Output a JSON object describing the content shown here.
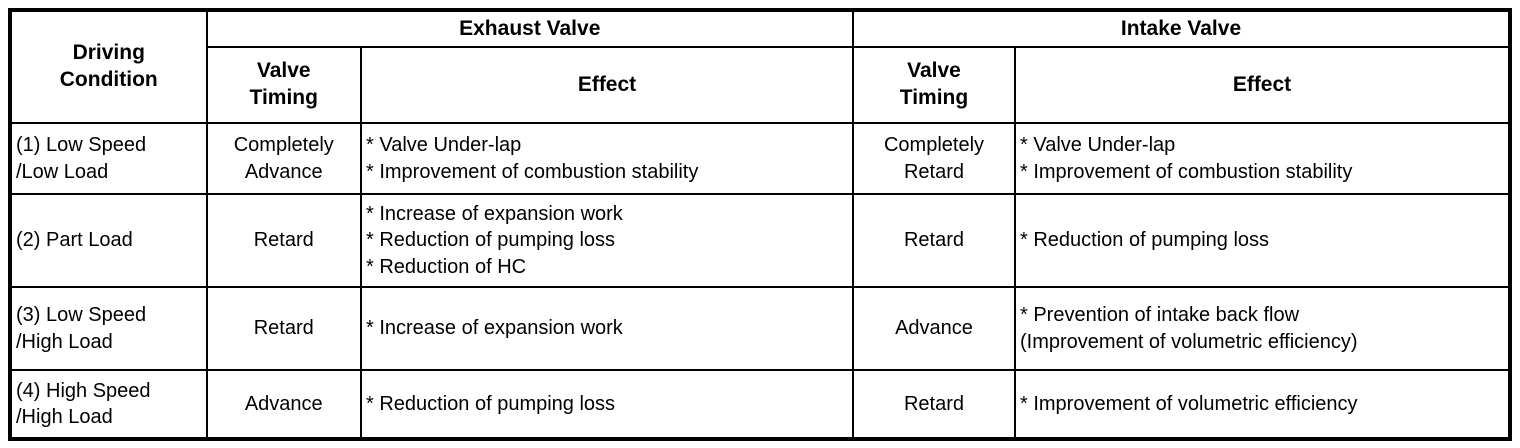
{
  "table": {
    "header": {
      "driving_condition": "Driving\nCondition",
      "exhaust_valve_group": "Exhaust Valve",
      "intake_valve_group": "Intake Valve",
      "exhaust_valve_timing": "Valve\nTiming",
      "exhaust_effect": "Effect",
      "intake_valve_timing": "Valve\nTiming",
      "intake_effect": "Effect"
    },
    "rows": [
      {
        "condition": "(1) Low Speed\n/Low Load",
        "exhaust_timing": "Completely\nAdvance",
        "exhaust_effect": "* Valve Under-lap\n* Improvement of combustion stability",
        "intake_timing": "Completely\nRetard",
        "intake_effect": "* Valve Under-lap\n* Improvement of combustion stability"
      },
      {
        "condition": "(2) Part Load",
        "exhaust_timing": "Retard",
        "exhaust_effect": "* Increase of expansion work\n* Reduction of pumping loss\n* Reduction of HC",
        "intake_timing": "Retard",
        "intake_effect": "* Reduction of pumping loss"
      },
      {
        "condition": "(3) Low Speed\n/High Load",
        "exhaust_timing": "Retard",
        "exhaust_effect": "* Increase of expansion work",
        "intake_timing": "Advance",
        "intake_effect": "* Prevention of intake back flow\n(Improvement of volumetric efficiency)"
      },
      {
        "condition": "(4) High Speed\n/High Load",
        "exhaust_timing": "Advance",
        "exhaust_effect": "* Reduction of pumping loss",
        "intake_timing": "Retard",
        "intake_effect": "* Improvement of volumetric efficiency"
      }
    ],
    "colors": {
      "border": "#000000",
      "text": "#000000",
      "background": "#ffffff"
    }
  }
}
